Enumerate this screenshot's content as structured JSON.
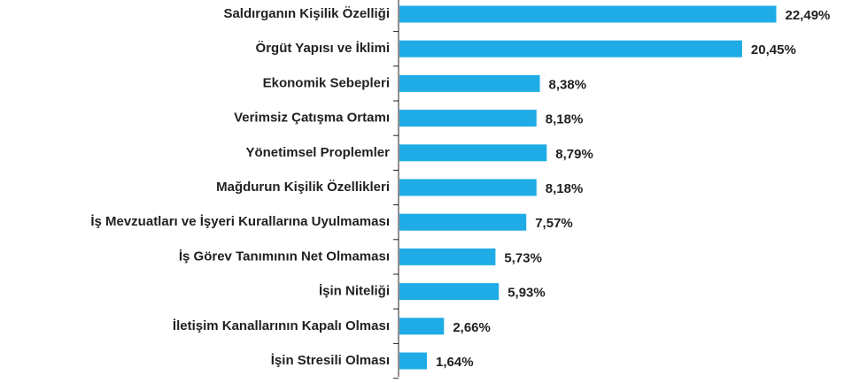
{
  "chart_data": {
    "type": "bar",
    "orientation": "horizontal",
    "color": "#1fabe6",
    "categories": [
      "Saldırganın Kişilik Özelliği",
      "Örgüt Yapısı ve İklimi",
      "Ekonomik Sebepleri",
      "Verimsiz Çatışma Ortamı",
      "Yönetimsel Proplemler",
      "Mağdurun Kişilik Özellikleri",
      "İş Mevzuatları ve İşyeri Kurallarına Uyulmaması",
      "İş Görev Tanımının Net Olmaması",
      "İşin Niteliği",
      "İletişim Kanallarının Kapalı Olması",
      "İşin Stresili Olması"
    ],
    "values": [
      22.49,
      20.45,
      8.38,
      8.18,
      8.79,
      8.18,
      7.57,
      5.73,
      5.93,
      2.66,
      1.64
    ],
    "value_labels": [
      "22,49%",
      "20,45%",
      "8,38%",
      "8,18%",
      "8,79%",
      "8,18%",
      "7,57%",
      "5,73%",
      "5,93%",
      "2,66%",
      "1,64%"
    ]
  }
}
